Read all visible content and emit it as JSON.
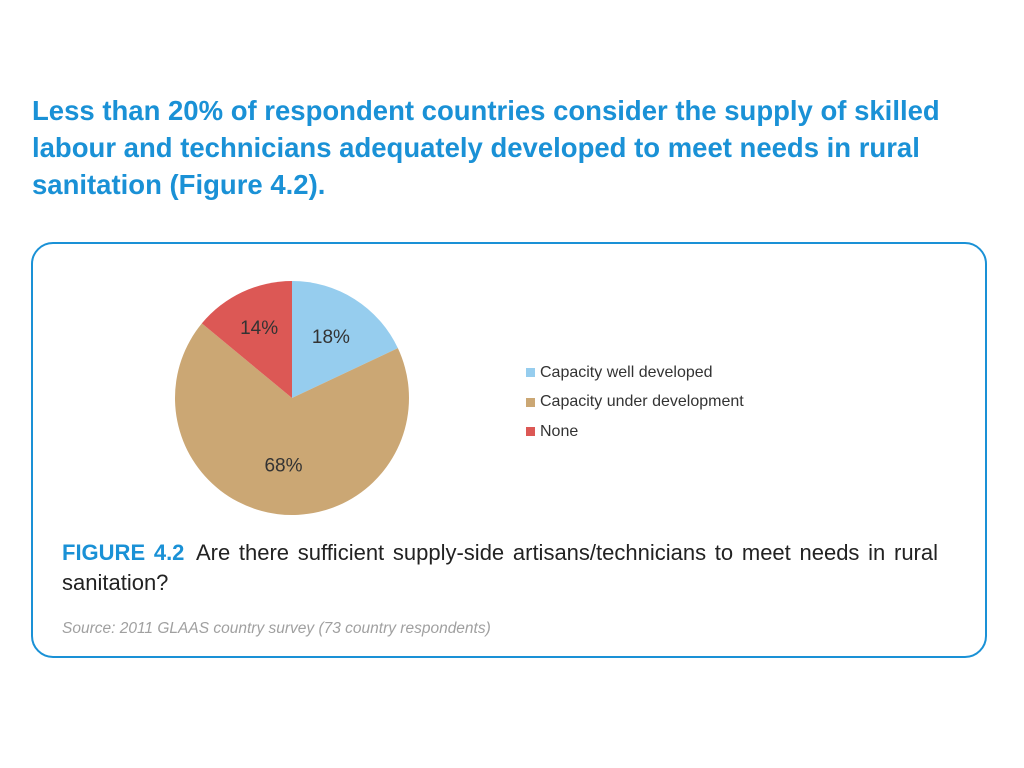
{
  "headline": "Less than 20% of respondent countries consider the supply of skilled labour and technicians adequately developed to meet needs in rural sanitation (Figure 4.2).",
  "figure": {
    "label": "FIGURE 4.2",
    "caption": "Are there sufficient supply-side artisans/technicians to meet needs in rural sanitation?",
    "source": "Source: 2011 GLAAS country survey (73 country respondents)"
  },
  "chart_data": {
    "type": "pie",
    "title": "",
    "slices": [
      {
        "name": "Capacity well developed",
        "value": 18,
        "label": "18%",
        "color": "#96cdee"
      },
      {
        "name": "Capacity under development",
        "value": 68,
        "label": "68%",
        "color": "#cba774"
      },
      {
        "name": "None",
        "value": 14,
        "label": "14%",
        "color": "#dc5855"
      }
    ],
    "start_angle": "12 o'clock",
    "direction": "clockwise",
    "legend_position": "right"
  }
}
